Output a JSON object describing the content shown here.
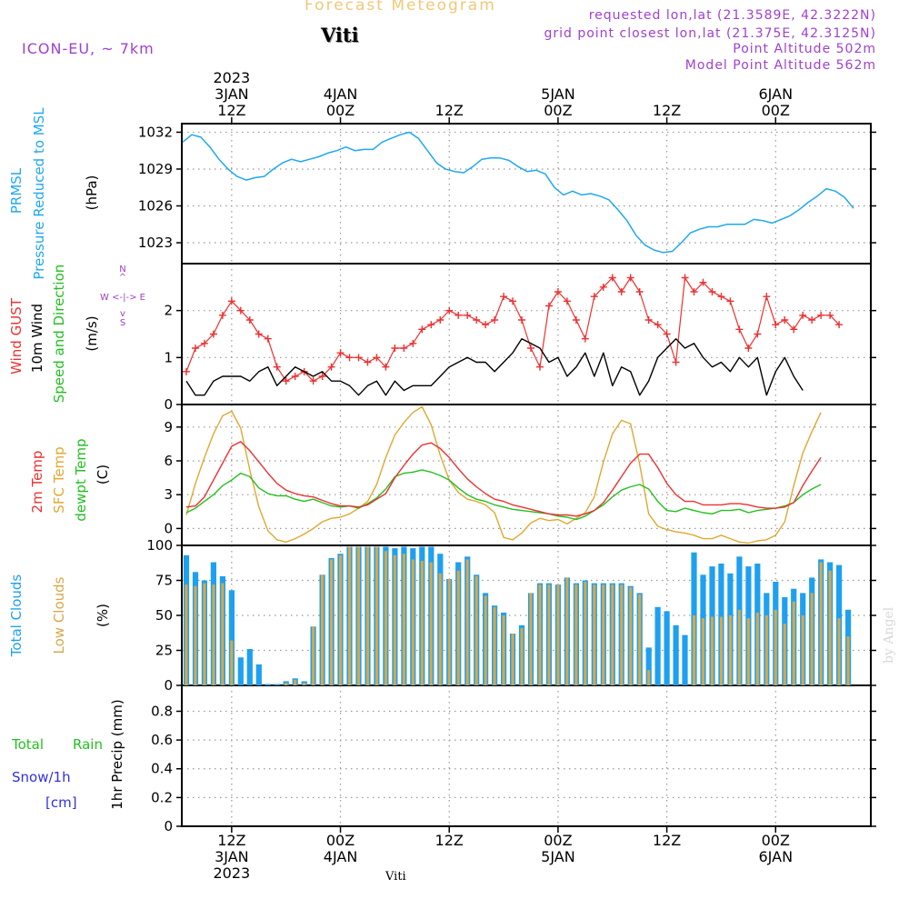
{
  "header": {
    "title": "Forecast Meteogram",
    "station": "Viti",
    "model": "ICON-EU, ~ 7km",
    "requested": "requested lon,lat (21.3589E, 42.3222N)",
    "grid_point": "grid point closest lon,lat (21.375E, 42.3125N)",
    "point_altitude": "Point Altitude 502m",
    "model_altitude": "Model Point Altitude 562m",
    "credit": "by Angel",
    "bottom_station": "Viti"
  },
  "colors": {
    "title": "#f0c878",
    "info": "#a040d0",
    "pressure": "#1ea8f0",
    "gust": "#ee3030",
    "wind": "#000000",
    "sfc": "#e0a830",
    "dewpt": "#22c020",
    "total_clouds": "#1ea0f0",
    "low_clouds": "#d8a848",
    "rain": "#22c020",
    "snow": "#3030e0",
    "axis": "#000000",
    "grid": "#999999"
  },
  "time_axis": {
    "top": [
      {
        "t": 12,
        "lines": [
          "2023",
          "3JAN",
          "12Z"
        ]
      },
      {
        "t": 24,
        "lines": [
          "4JAN",
          "00Z"
        ]
      },
      {
        "t": 36,
        "lines": [
          "12Z"
        ]
      },
      {
        "t": 48,
        "lines": [
          "5JAN",
          "00Z"
        ]
      },
      {
        "t": 60,
        "lines": [
          "12Z"
        ]
      },
      {
        "t": 72,
        "lines": [
          "6JAN",
          "00Z"
        ]
      }
    ],
    "bottom": [
      {
        "t": 12,
        "lines": [
          "12Z",
          "3JAN",
          "2023"
        ]
      },
      {
        "t": 24,
        "lines": [
          "00Z",
          "4JAN"
        ]
      },
      {
        "t": 36,
        "lines": [
          "12Z"
        ]
      },
      {
        "t": 48,
        "lines": [
          "00Z",
          "5JAN"
        ]
      },
      {
        "t": 60,
        "lines": [
          "12Z"
        ]
      },
      {
        "t": 72,
        "lines": [
          "00Z",
          "6JAN"
        ]
      }
    ],
    "range_hours": [
      6.5,
      82.5
    ]
  },
  "panel_labels": {
    "pressure": {
      "label1": "PRMSL",
      "label2": "Pressure Reduced to MSL",
      "unit": "(hPa)"
    },
    "wind": {
      "gust": "Wind GUST",
      "wind10m": "10m Wind",
      "speed": "Speed and Direction",
      "unit": "(m/s)",
      "compass_n": "N",
      "compass_s": "S",
      "compass_ew": "W <-|-> E",
      "compass_arrow_up": "^",
      "compass_arrow_dn": "v"
    },
    "temp": {
      "t2m": "2m Temp",
      "sfc": "SFC Temp",
      "dewpt": "dewpt Temp",
      "unit": "(C)"
    },
    "clouds": {
      "total": "Total Clouds",
      "low": "Low Clouds",
      "unit": "(%)"
    },
    "precip": {
      "rain_a": "Total",
      "rain_b": "Rain",
      "snow": "Snow/1h",
      "cm": "[cm]",
      "unit": "1hr Precip (mm)"
    }
  },
  "chart_data": [
    {
      "type": "line",
      "id": "pressure",
      "title": "PRMSL Pressure Reduced to MSL",
      "ylabel": "(hPa)",
      "ylim": [
        1021.3,
        1032.7
      ],
      "yticks": [
        1023,
        1026,
        1029,
        1032
      ],
      "grid": true,
      "series": [
        {
          "name": "PRMSL",
          "x_start": 6.6,
          "x_step": 1,
          "values": [
            1031.2,
            1031.8,
            1031.6,
            1030.8,
            1029.8,
            1029.0,
            1028.4,
            1028.1,
            1028.3,
            1028.4,
            1029.0,
            1029.5,
            1029.8,
            1029.6,
            1029.8,
            1030.0,
            1030.3,
            1030.5,
            1030.8,
            1030.5,
            1030.6,
            1030.6,
            1031.2,
            1031.5,
            1031.8,
            1032.0,
            1031.5,
            1030.5,
            1029.5,
            1029.0,
            1028.8,
            1028.7,
            1029.2,
            1029.8,
            1029.9,
            1029.9,
            1029.7,
            1029.2,
            1028.8,
            1028.9,
            1028.6,
            1027.5,
            1026.9,
            1027.2,
            1026.9,
            1027.0,
            1026.8,
            1026.5,
            1025.7,
            1024.8,
            1023.6,
            1022.8,
            1022.4,
            1022.2,
            1022.3,
            1023.0,
            1023.8,
            1024.1,
            1024.3,
            1024.3,
            1024.5,
            1024.5,
            1024.5,
            1024.9,
            1024.8,
            1024.6,
            1024.9,
            1025.2,
            1025.7,
            1026.3,
            1026.8,
            1027.4,
            1027.2,
            1026.7,
            1025.8
          ]
        }
      ]
    },
    {
      "type": "line",
      "id": "wind",
      "title": "Wind GUST / 10m Wind Speed and Direction",
      "ylabel": "(m/s)",
      "ylim": [
        0,
        3.0
      ],
      "yticks": [
        0,
        1,
        2
      ],
      "grid": true,
      "series": [
        {
          "name": "Wind GUST",
          "x_start": 7,
          "x_step": 1,
          "marker": "+",
          "values": [
            0.7,
            1.2,
            1.3,
            1.5,
            1.9,
            2.2,
            2.0,
            1.8,
            1.5,
            1.4,
            0.8,
            0.5,
            0.6,
            0.7,
            0.5,
            0.6,
            0.8,
            1.1,
            1.0,
            1.0,
            0.9,
            1.0,
            0.8,
            1.2,
            1.2,
            1.3,
            1.6,
            1.7,
            1.8,
            2.0,
            1.9,
            1.9,
            1.8,
            1.7,
            1.8,
            2.3,
            2.2,
            1.8,
            1.2,
            0.8,
            2.1,
            2.4,
            2.2,
            1.8,
            1.4,
            2.3,
            2.5,
            2.7,
            2.4,
            2.7,
            2.4,
            1.8,
            1.7,
            1.5,
            0.9,
            2.7,
            2.4,
            2.6,
            2.4,
            2.3,
            2.2,
            1.6,
            1.2,
            1.5,
            2.3,
            1.7,
            1.8,
            1.6,
            1.9,
            1.8,
            1.9,
            1.9,
            1.7
          ]
        },
        {
          "name": "10m Wind",
          "x_start": 7,
          "x_step": 1,
          "values": [
            0.5,
            0.2,
            0.2,
            0.5,
            0.6,
            0.6,
            0.6,
            0.5,
            0.7,
            0.8,
            0.4,
            0.6,
            0.8,
            0.7,
            0.6,
            0.7,
            0.5,
            0.5,
            0.4,
            0.2,
            0.4,
            0.5,
            0.2,
            0.5,
            0.3,
            0.4,
            0.4,
            0.4,
            0.6,
            0.8,
            0.9,
            1.0,
            0.9,
            0.9,
            0.7,
            0.9,
            1.1,
            1.4,
            1.3,
            1.2,
            0.9,
            1.0,
            0.6,
            0.8,
            1.1,
            0.6,
            1.1,
            0.4,
            0.8,
            0.7,
            0.2,
            0.5,
            1.0,
            1.2,
            1.4,
            1.2,
            1.3,
            1.0,
            0.8,
            0.9,
            0.7,
            1.0,
            0.8,
            1.0,
            0.2,
            0.7,
            1.0,
            0.6,
            0.3
          ]
        }
      ]
    },
    {
      "type": "line",
      "id": "temperature",
      "title": "2m Temp / SFC Temp / dewpt Temp",
      "ylabel": "(C)",
      "ylim": [
        -1.5,
        11
      ],
      "yticks": [
        0,
        3,
        6,
        9
      ],
      "grid": true,
      "series": [
        {
          "name": "2m Temp",
          "x_start": 7,
          "x_step": 1,
          "values": [
            1.9,
            2.0,
            2.8,
            4.3,
            5.8,
            7.3,
            7.7,
            6.9,
            5.9,
            4.9,
            4.0,
            3.4,
            3.1,
            2.9,
            2.8,
            2.5,
            2.2,
            2.0,
            2.0,
            1.9,
            2.1,
            2.6,
            3.1,
            4.5,
            5.6,
            6.6,
            7.4,
            7.6,
            7.1,
            6.3,
            5.3,
            4.4,
            3.7,
            3.1,
            2.6,
            2.4,
            2.1,
            1.9,
            1.7,
            1.5,
            1.3,
            1.2,
            1.2,
            1.1,
            1.3,
            1.6,
            2.3,
            3.4,
            4.6,
            5.8,
            6.6,
            6.6,
            5.4,
            4.0,
            3.0,
            2.4,
            2.4,
            2.1,
            2.1,
            2.1,
            2.2,
            2.2,
            2.1,
            1.9,
            1.8,
            1.8,
            1.9,
            2.3,
            3.8,
            5.1,
            6.3
          ]
        },
        {
          "name": "SFC Temp",
          "x_start": 7,
          "x_step": 1,
          "values": [
            1.2,
            4.0,
            6.3,
            8.4,
            10.0,
            10.4,
            8.9,
            5.2,
            1.9,
            -0.2,
            -1.0,
            -1.2,
            -0.9,
            -0.5,
            0.0,
            0.6,
            0.9,
            1.0,
            1.3,
            1.8,
            2.4,
            3.9,
            6.3,
            8.3,
            9.4,
            10.3,
            10.8,
            9.2,
            6.5,
            4.3,
            3.2,
            2.6,
            2.4,
            2.1,
            1.4,
            -0.8,
            -1.0,
            -0.4,
            0.5,
            0.9,
            0.7,
            0.8,
            0.4,
            0.9,
            1.4,
            2.8,
            5.9,
            8.4,
            9.6,
            9.3,
            5.7,
            1.3,
            0.2,
            -0.1,
            -0.3,
            -0.4,
            -0.6,
            -0.9,
            -0.9,
            -0.6,
            -0.9,
            -1.2,
            -1.3,
            -1.1,
            -1.0,
            -0.6,
            0.6,
            3.8,
            6.7,
            8.6,
            10.3
          ]
        },
        {
          "name": "dewpt Temp",
          "x_start": 7,
          "x_step": 1,
          "values": [
            1.4,
            1.8,
            2.4,
            3.0,
            3.8,
            4.3,
            4.9,
            4.6,
            3.6,
            3.1,
            2.9,
            2.9,
            2.6,
            2.4,
            2.6,
            2.3,
            2.0,
            1.9,
            2.0,
            1.8,
            2.2,
            2.7,
            3.5,
            4.6,
            4.9,
            5.0,
            5.2,
            5.0,
            4.7,
            4.3,
            3.6,
            3.0,
            2.6,
            2.4,
            2.1,
            1.9,
            1.7,
            1.6,
            1.5,
            1.4,
            1.3,
            1.1,
            1.0,
            0.8,
            1.1,
            1.6,
            2.1,
            2.8,
            3.4,
            3.7,
            3.9,
            3.5,
            2.4,
            1.6,
            1.5,
            1.8,
            1.6,
            1.4,
            1.3,
            1.6,
            1.6,
            1.7,
            1.4,
            1.6,
            1.7,
            1.8,
            2.0,
            2.3,
            3.0,
            3.5,
            3.9
          ]
        }
      ]
    },
    {
      "type": "bar",
      "id": "clouds",
      "title": "Total Clouds / Low Clouds",
      "ylabel": "(%)",
      "ylim": [
        0,
        100
      ],
      "yticks": [
        0,
        25,
        50,
        75,
        100
      ],
      "grid": true,
      "x_start": 7,
      "x_step": 1,
      "series": [
        {
          "name": "Total Clouds",
          "values": [
            93,
            81,
            75,
            88,
            78,
            68,
            20,
            26,
            15,
            1,
            1,
            3,
            5,
            3,
            42,
            79,
            91,
            94,
            99,
            99,
            99,
            99,
            99,
            98,
            99,
            98,
            99,
            99,
            94,
            76,
            88,
            92,
            79,
            66,
            57,
            52,
            37,
            43,
            66,
            73,
            73,
            72,
            77,
            73,
            75,
            73,
            73,
            73,
            73,
            71,
            66,
            27,
            56,
            53,
            43,
            36,
            95,
            79,
            85,
            87,
            80,
            92,
            85,
            87,
            66,
            74,
            63,
            69,
            66,
            77,
            90,
            88,
            86,
            54
          ]
        },
        {
          "name": "Low Clouds",
          "values": [
            72,
            71,
            73,
            72,
            73,
            32,
            0,
            0,
            0,
            0,
            0,
            2,
            4,
            2,
            42,
            79,
            90,
            93,
            99,
            99,
            99,
            99,
            96,
            93,
            94,
            90,
            89,
            88,
            80,
            76,
            82,
            90,
            78,
            64,
            56,
            50,
            37,
            41,
            66,
            72,
            72,
            72,
            77,
            72,
            74,
            72,
            72,
            72,
            72,
            70,
            65,
            11,
            0,
            0,
            0,
            0,
            50,
            48,
            49,
            49,
            50,
            54,
            48,
            52,
            50,
            54,
            44,
            60,
            50,
            66,
            88,
            82,
            48,
            35
          ]
        }
      ]
    },
    {
      "type": "bar",
      "id": "precipitation",
      "title": "1hr Precip",
      "ylabel": "1hr Precip (mm)",
      "ylim": [
        0,
        0.98
      ],
      "yticks": [
        0,
        0.2,
        0.4,
        0.6,
        0.8
      ],
      "grid": true,
      "series": [
        {
          "name": "Total Rain",
          "values": []
        },
        {
          "name": "Snow/1h",
          "values": []
        }
      ]
    }
  ]
}
